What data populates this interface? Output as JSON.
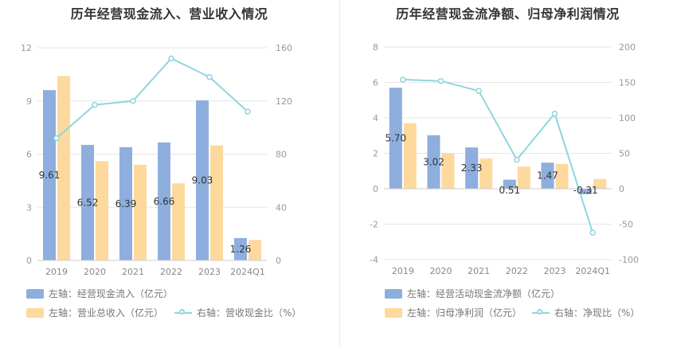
{
  "colors": {
    "bar1": "#8eaede",
    "bar2": "#fdd99d",
    "line": "#8ed6de"
  },
  "chart_data": [
    {
      "type": "bar",
      "title": "历年经营现金流入、营业收入情况",
      "categories": [
        "2019",
        "2020",
        "2021",
        "2022",
        "2023",
        "2024Q1"
      ],
      "left_ticks": [
        "0",
        "3",
        "6",
        "9",
        "12"
      ],
      "right_ticks": [
        "0",
        "40",
        "80",
        "120",
        "160"
      ],
      "ylim_left": [
        0,
        12
      ],
      "ylim_right": [
        0,
        160
      ],
      "series": [
        {
          "name": "左轴：经营现金流入（亿元）",
          "axis": "left",
          "kind": "bar",
          "values": [
            9.61,
            6.52,
            6.39,
            6.66,
            9.03,
            1.26
          ],
          "labels": [
            "9.61",
            "6.52",
            "6.39",
            "6.66",
            "9.03",
            "1.26"
          ]
        },
        {
          "name": "左轴：营业总收入（亿元）",
          "axis": "left",
          "kind": "bar",
          "values": [
            10.4,
            5.6,
            5.4,
            4.35,
            6.5,
            1.15
          ]
        },
        {
          "name": "右轴：营收现金比（%）",
          "axis": "right",
          "kind": "line",
          "values": [
            92,
            117,
            120,
            152,
            138,
            112
          ]
        }
      ],
      "legend": [
        "左轴：经营现金流入（亿元）",
        "左轴：营业总收入（亿元）",
        "右轴：营收现金比（%）"
      ]
    },
    {
      "type": "bar",
      "title": "历年经营现金流净额、归母净利润情况",
      "categories": [
        "2019",
        "2020",
        "2021",
        "2022",
        "2023",
        "2024Q1"
      ],
      "left_ticks": [
        "-4",
        "-2",
        "0",
        "2",
        "4",
        "6",
        "8"
      ],
      "right_ticks": [
        "-100",
        "-50",
        "0",
        "50",
        "100",
        "150",
        "200"
      ],
      "ylim_left": [
        -4,
        8
      ],
      "ylim_right": [
        -100,
        200
      ],
      "series": [
        {
          "name": "左轴：经营活动现金流净额（亿元）",
          "axis": "left",
          "kind": "bar",
          "values": [
            5.7,
            3.02,
            2.33,
            0.51,
            1.47,
            -0.31
          ],
          "labels": [
            "5.70",
            "3.02",
            "2.33",
            "0.51",
            "1.47",
            "-0.31"
          ]
        },
        {
          "name": "左轴：归母净利润（亿元）",
          "axis": "left",
          "kind": "bar",
          "values": [
            3.7,
            2.0,
            1.7,
            1.25,
            1.4,
            0.55
          ]
        },
        {
          "name": "右轴：净现比（%）",
          "axis": "right",
          "kind": "line",
          "values": [
            154,
            152,
            138,
            41,
            106,
            -62
          ]
        }
      ],
      "legend": [
        "左轴：经营活动现金流净额（亿元）",
        "左轴：归母净利润（亿元）",
        "右轴：净现比（%）"
      ]
    }
  ]
}
